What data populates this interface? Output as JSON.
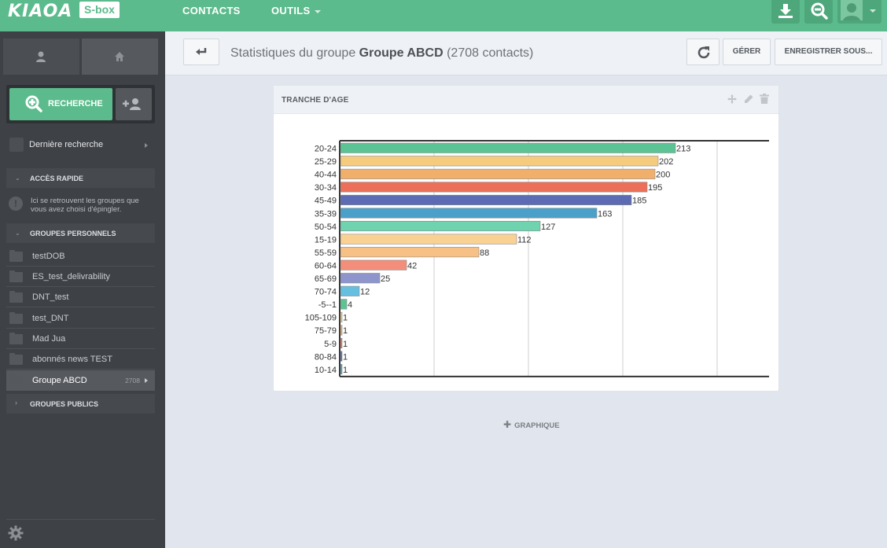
{
  "topbar": {
    "logo": "KIAOA",
    "product_badge": "S-box",
    "nav": [
      {
        "label": "CONTACTS"
      },
      {
        "label": "OUTILS"
      }
    ]
  },
  "sidebar": {
    "search_button": "RECHERCHE",
    "last_search": "Dernière recherche",
    "quick_access": {
      "title": "ACCÈS RAPIDE",
      "info": "Ici se retrouvent les groupes que vous avez choisi d'épingler."
    },
    "personal_groups": {
      "title": "GROUPES PERSONNELS",
      "items": [
        {
          "label": "testDOB"
        },
        {
          "label": "ES_test_delivrability"
        },
        {
          "label": "DNT_test"
        },
        {
          "label": "test_DNT"
        },
        {
          "label": "Mad Jua"
        },
        {
          "label": "abonnés news TEST"
        },
        {
          "label": "Groupe ABCD",
          "count": "2708"
        }
      ]
    },
    "public_groups": {
      "title": "GROUPES PUBLICS"
    }
  },
  "header": {
    "title_prefix": "Statistiques du groupe",
    "group_name": "Groupe ABCD",
    "contact_count": "(2708 contacts)",
    "manage_button": "GÉRER",
    "save_as_button": "ENREGISTRER SOUS..."
  },
  "panel": {
    "title": "TRANCHE D'AGE"
  },
  "add_graph": "GRAPHIQUE",
  "chart_data": {
    "type": "bar",
    "orientation": "horizontal",
    "categories": [
      "20-24",
      "25-29",
      "40-44",
      "30-34",
      "45-49",
      "35-39",
      "50-54",
      "15-19",
      "55-59",
      "60-64",
      "65-69",
      "70-74",
      "-5--1",
      "105-109",
      "75-79",
      "5-9",
      "80-84",
      "10-14"
    ],
    "values": [
      213,
      202,
      200,
      195,
      185,
      163,
      127,
      112,
      88,
      42,
      25,
      12,
      4,
      1,
      1,
      1,
      1,
      1
    ],
    "colors": [
      "#5cc394",
      "#f5cb7d",
      "#f0b06b",
      "#ec7059",
      "#5c6bb3",
      "#4aa0c8",
      "#6fd3b0",
      "#f9d193",
      "#f7c185",
      "#f28e7a",
      "#8d95cc",
      "#67bfe0",
      "#5cc394",
      "#f5cb7d",
      "#f0b06b",
      "#ec7059",
      "#5c6bb3",
      "#4aa0c8"
    ],
    "xlim": [
      0,
      273
    ],
    "xgrid": [
      60,
      120,
      180,
      240
    ],
    "grid": true,
    "data_labels": true
  }
}
